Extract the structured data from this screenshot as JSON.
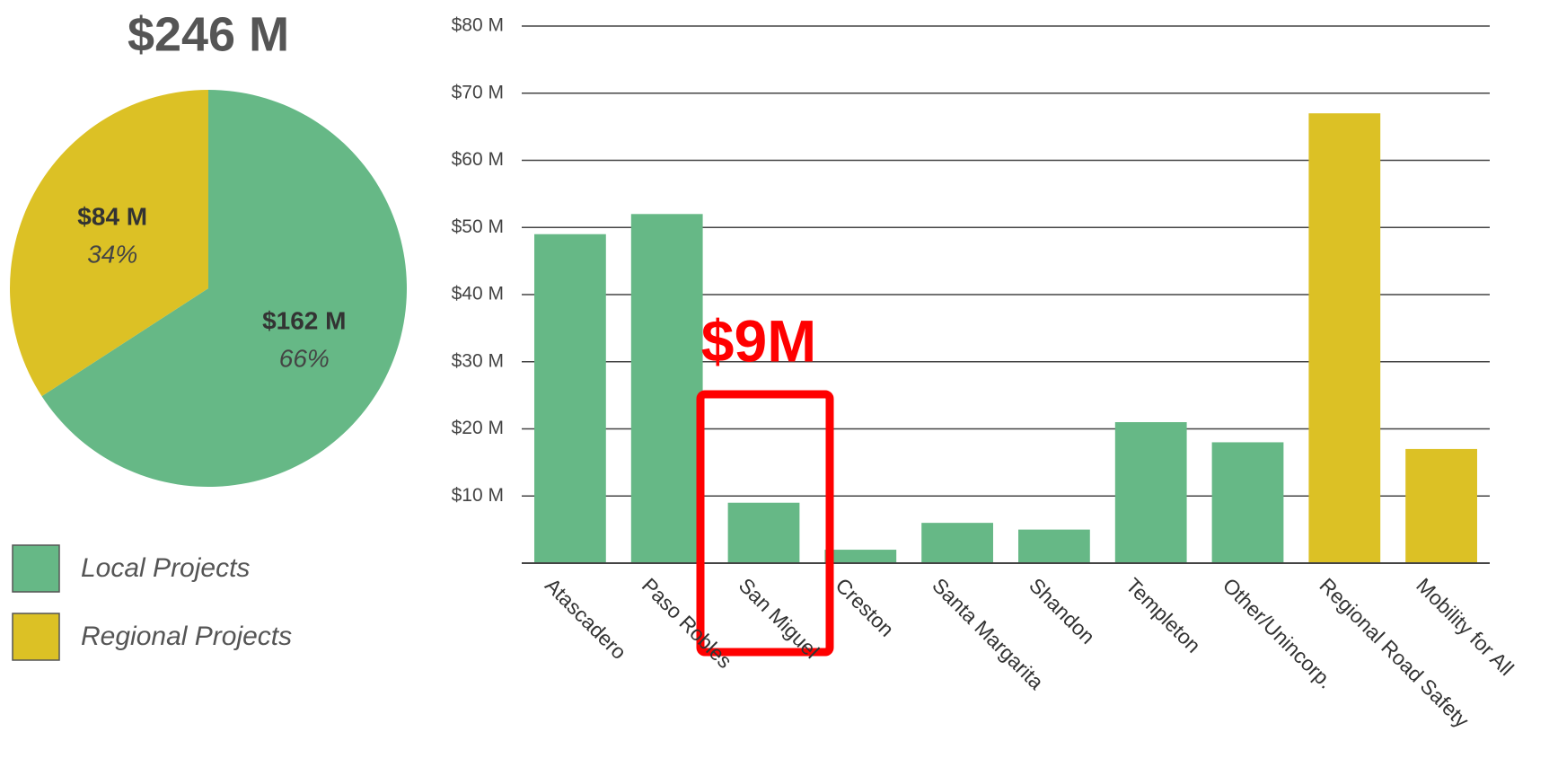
{
  "chart_data": [
    {
      "type": "pie",
      "title": "$246 M",
      "series": [
        {
          "name": "Local Projects",
          "color": "#66b886"
        },
        {
          "name": "Regional Projects",
          "color": "#dcc125"
        }
      ],
      "values": [
        162,
        84
      ],
      "value_labels": [
        "$162 M",
        "$84 M"
      ],
      "percent_labels": [
        "66%",
        "34%"
      ]
    },
    {
      "type": "bar",
      "categories": [
        "Atascadero",
        "Paso Robles",
        "San Miguel",
        "Creston",
        "Santa Margarita",
        "Shandon",
        "Templeton",
        "Other/Unincorp.",
        "Regional Road Safety",
        "Mobility for All"
      ],
      "values": [
        49,
        52,
        9,
        2,
        6,
        5,
        21,
        18,
        67,
        17
      ],
      "colors": [
        "#66b886",
        "#66b886",
        "#66b886",
        "#66b886",
        "#66b886",
        "#66b886",
        "#66b886",
        "#66b886",
        "#dcc125",
        "#dcc125"
      ],
      "ylim": [
        0,
        80
      ],
      "yticks": [
        {
          "value": 10,
          "label": "$10 M"
        },
        {
          "value": 20,
          "label": "$20 M"
        },
        {
          "value": 30,
          "label": "$30 M"
        },
        {
          "value": 40,
          "label": "$40 M"
        },
        {
          "value": 50,
          "label": "$50 M"
        },
        {
          "value": 60,
          "label": "$60 M"
        },
        {
          "value": 70,
          "label": "$70 M"
        },
        {
          "value": 80,
          "label": "$80 M"
        }
      ],
      "grid": true,
      "annotation": "$9M"
    }
  ]
}
